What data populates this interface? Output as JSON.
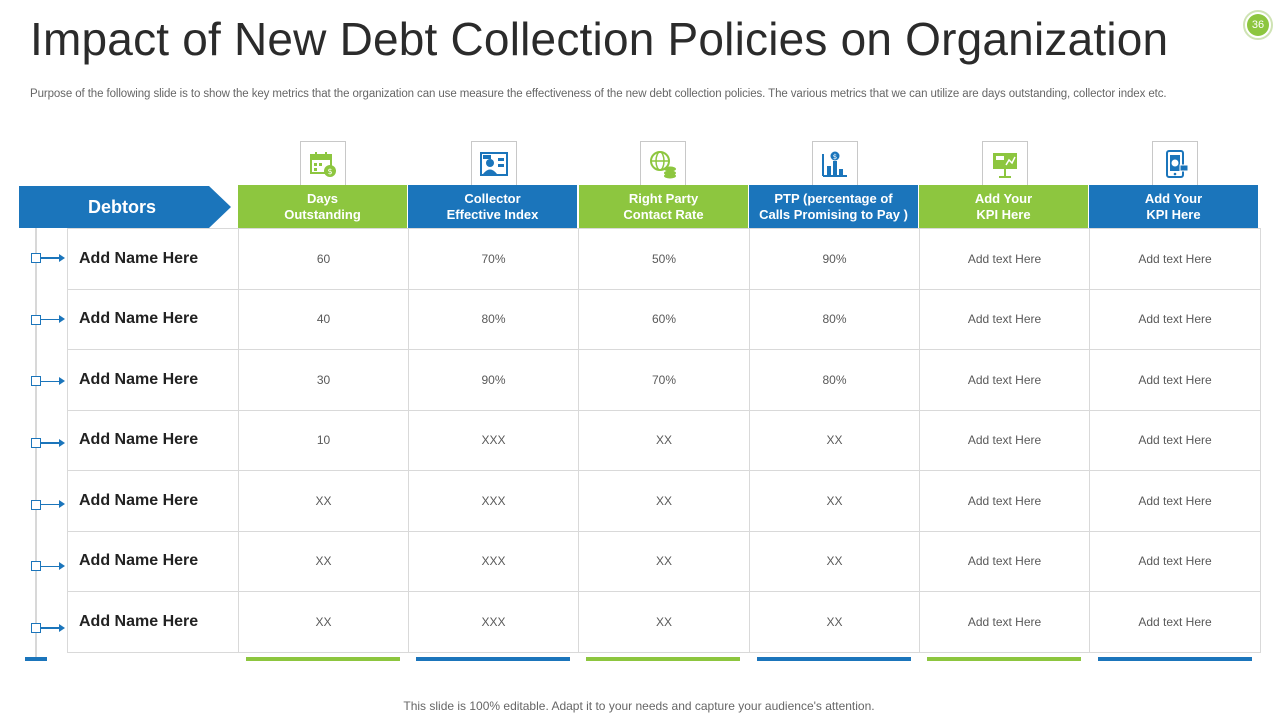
{
  "title": "Impact of New Debt Collection Policies on Organization",
  "page_number": "36",
  "subtitle": "Purpose of the following slide is to show the key metrics that the organization can use measure the effectiveness of the new debt collection policies. The various metrics that we can utilize are days outstanding, collector index etc.",
  "row_header": "Debtors",
  "columns": [
    {
      "label": "Days\nOutstanding",
      "icon": "calendar-dollar-icon",
      "color": "#8dc63f"
    },
    {
      "label": "Collector\nEffective Index",
      "icon": "collector-index-icon",
      "color": "#1b75bb"
    },
    {
      "label": "Right Party\nContact Rate",
      "icon": "globe-coins-icon",
      "color": "#8dc63f"
    },
    {
      "label": "PTP (percentage of\nCalls Promising to Pay )",
      "icon": "bar-chart-dollar-icon",
      "color": "#1b75bb"
    },
    {
      "label": "Add Your\nKPI Here",
      "icon": "presentation-board-icon",
      "color": "#8dc63f"
    },
    {
      "label": "Add Your\nKPI Here",
      "icon": "mobile-payment-icon",
      "color": "#1b75bb"
    }
  ],
  "rows": [
    {
      "name": "Add Name Here",
      "cells": [
        "60",
        "70%",
        "50%",
        "90%",
        "Add text Here",
        "Add text Here"
      ]
    },
    {
      "name": "Add Name Here",
      "cells": [
        "40",
        "80%",
        "60%",
        "80%",
        "Add text Here",
        "Add text Here"
      ]
    },
    {
      "name": "Add Name Here",
      "cells": [
        "30",
        "90%",
        "70%",
        "80%",
        "Add text Here",
        "Add text Here"
      ]
    },
    {
      "name": "Add Name Here",
      "cells": [
        "10",
        "XXX",
        "XX",
        "XX",
        "Add text Here",
        "Add text Here"
      ]
    },
    {
      "name": "Add Name Here",
      "cells": [
        "XX",
        "XXX",
        "XX",
        "XX",
        "Add text Here",
        "Add text Here"
      ]
    },
    {
      "name": "Add Name Here",
      "cells": [
        "XX",
        "XXX",
        "XX",
        "XX",
        "Add text Here",
        "Add text Here"
      ]
    },
    {
      "name": "Add Name Here",
      "cells": [
        "XX",
        "XXX",
        "XX",
        "XX",
        "Add text Here",
        "Add text Here"
      ]
    }
  ],
  "footer": "This slide is 100% editable. Adapt it to your needs and capture your audience's attention."
}
